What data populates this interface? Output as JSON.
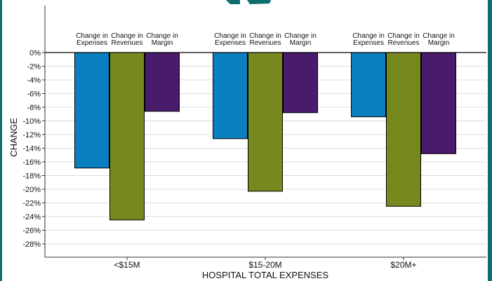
{
  "chart_data": {
    "type": "bar",
    "title": "",
    "xlabel": "HOSPITAL TOTAL EXPENSES",
    "ylabel": "CHANGE",
    "ylim": [
      -29,
      0
    ],
    "yticks": [
      0,
      -2,
      -4,
      -6,
      -8,
      -10,
      -12,
      -14,
      -16,
      -18,
      -20,
      -22,
      -24,
      -26,
      -28
    ],
    "ytick_labels": [
      "0%",
      "-2%",
      "-4%",
      "-6%",
      "-8%",
      "-10%",
      "-12%",
      "-14%",
      "-16%",
      "-18%",
      "-20%",
      "-22%",
      "-24%",
      "-26%",
      "-28%"
    ],
    "grid": true,
    "categories": [
      "<$15M",
      "$15-20M",
      "$20M+"
    ],
    "series": [
      {
        "name": "Change in Expenses",
        "label_lines": [
          "Change in",
          "Expenses"
        ],
        "color": "#0a7fbf",
        "values": [
          -16.9,
          -12.6,
          -9.4
        ]
      },
      {
        "name": "Change in Revenues",
        "label_lines": [
          "Change in",
          "Revenues"
        ],
        "color": "#76891f",
        "values": [
          -24.5,
          -20.3,
          -22.5
        ]
      },
      {
        "name": "Change in Margin",
        "label_lines": [
          "Change in",
          "Margin"
        ],
        "color": "#4a1a6b",
        "values": [
          -8.6,
          -8.8,
          -14.8
        ]
      }
    ]
  },
  "colors": {
    "frame_accent": "#0e6e6e",
    "title_fragment": "#0e6e6e"
  }
}
